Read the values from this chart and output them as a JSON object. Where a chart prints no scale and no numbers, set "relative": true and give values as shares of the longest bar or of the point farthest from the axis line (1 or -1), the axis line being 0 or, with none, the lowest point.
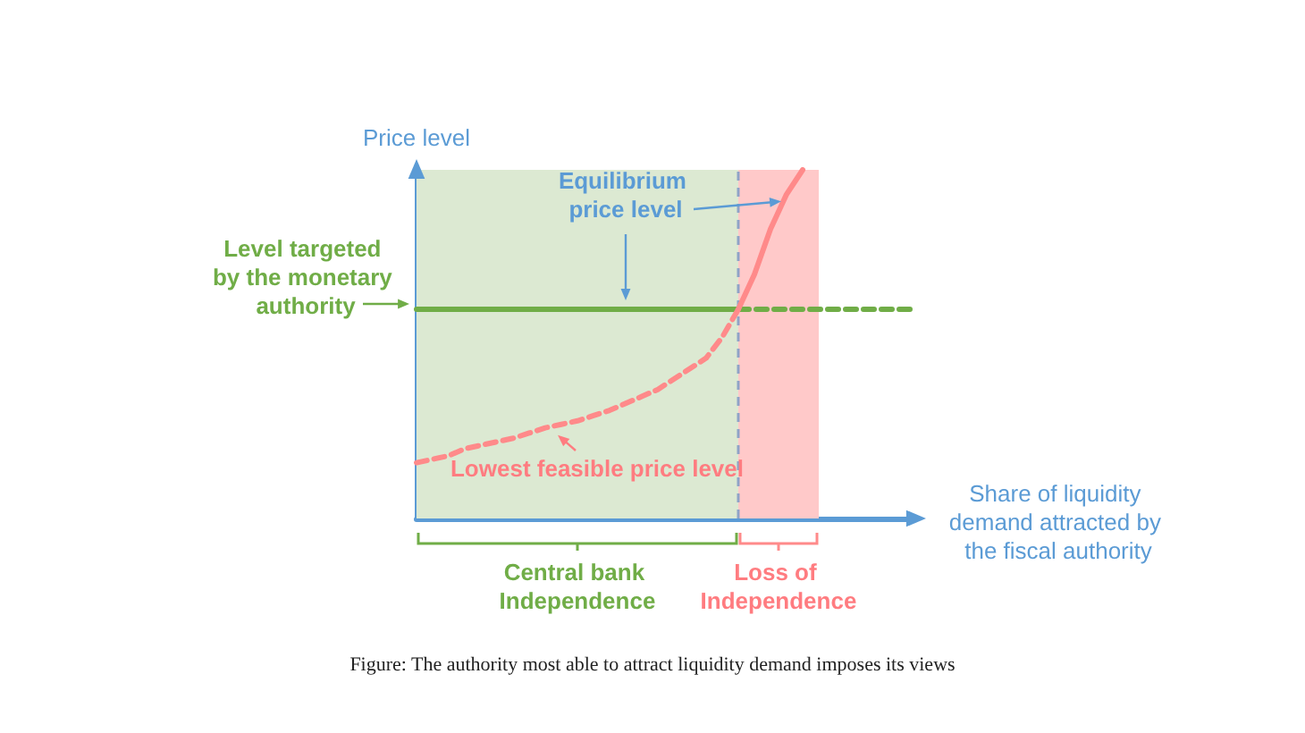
{
  "chart_data": {
    "type": "line",
    "relative": true,
    "ylabel": "Price level",
    "xlabel": "Share of liquidity demand attracted by the fiscal authority",
    "ylim": [
      0,
      1
    ],
    "grid": false,
    "marker": "none",
    "categories": [
      null,
      null,
      null,
      null,
      null,
      null,
      null,
      null,
      null,
      null,
      null,
      null,
      null,
      null,
      null,
      null,
      null,
      null,
      null,
      null,
      null,
      null,
      null,
      null,
      null,
      null,
      null,
      null,
      null,
      null,
      null,
      null
    ],
    "series": [
      {
        "color": "#70ad47",
        "values": [
          0.6,
          0.6,
          0.6,
          0.6,
          0.6,
          0.6,
          0.6,
          0.6,
          0.6,
          0.6,
          0.6,
          0.6,
          0.6,
          0.6,
          0.6,
          0.6,
          0.6,
          0.6,
          0.6,
          0.6,
          0.6,
          null,
          null,
          null,
          null,
          null,
          null,
          null,
          null,
          null,
          null,
          null
        ],
        "line_style": "solid"
      },
      {
        "color": "#70ad47",
        "values": [
          null,
          null,
          null,
          null,
          null,
          null,
          null,
          null,
          null,
          null,
          null,
          null,
          null,
          null,
          null,
          null,
          null,
          null,
          null,
          null,
          0.6,
          0.6,
          0.6,
          0.6,
          0.6,
          0.6,
          0.6,
          0.6,
          0.6,
          0.6,
          0.6,
          0.6
        ],
        "line_style": "dashed"
      },
      {
        "color": "#ff8a8a",
        "values": [
          0.16,
          0.17,
          0.18,
          0.2,
          0.21,
          0.22,
          0.23,
          0.245,
          0.26,
          0.27,
          0.28,
          0.295,
          0.31,
          0.33,
          0.35,
          0.37,
          0.4,
          0.43,
          0.46,
          0.52,
          0.6,
          null,
          null,
          null,
          null,
          null,
          null,
          null,
          null,
          null,
          null,
          null
        ],
        "line_style": "dashed"
      },
      {
        "color": "#ff8a8a",
        "values": [
          null,
          null,
          null,
          null,
          null,
          null,
          null,
          null,
          null,
          null,
          null,
          null,
          null,
          null,
          null,
          null,
          null,
          null,
          null,
          null,
          0.6,
          0.7,
          0.83,
          0.93,
          1.0,
          null,
          null,
          null,
          null,
          null,
          null,
          null
        ],
        "line_style": "solid"
      }
    ],
    "annotations": [
      "Level targeted by the monetary authority",
      "Equilibrium price level",
      "Lowest feasible price level",
      "Central bank Independence",
      "Loss of Independence",
      "Figure: The authority most able to attract liquidity demand imposes its views"
    ]
  }
}
